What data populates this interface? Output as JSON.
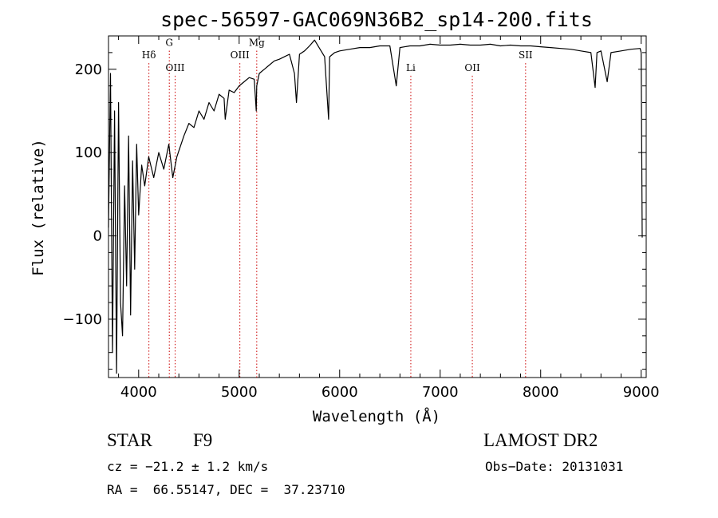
{
  "chart_data": {
    "type": "line",
    "title": "spec-56597-GAC069N36B2_sp14-200.fits",
    "xlabel": "Wavelength (Å)",
    "ylabel": "Flux (relative)",
    "xlim": [
      3700,
      9050
    ],
    "ylim": [
      -170,
      240
    ],
    "xticks": [
      4000,
      5000,
      6000,
      7000,
      8000,
      9000
    ],
    "yticks": [
      -100,
      0,
      100,
      200
    ],
    "grid": false,
    "series": [
      {
        "x": [
          3700,
          3720,
          3740,
          3760,
          3780,
          3800,
          3820,
          3840,
          3860,
          3880,
          3900,
          3920,
          3940,
          3960,
          3980,
          4000,
          4030,
          4060,
          4100,
          4150,
          4200,
          4250,
          4300,
          4340,
          4380,
          4450,
          4500,
          4550,
          4600,
          4650,
          4700,
          4750,
          4800,
          4850,
          4861,
          4900,
          4950,
          5000,
          5050,
          5100,
          5150,
          5170,
          5175,
          5200,
          5250,
          5300,
          5350,
          5400,
          5450,
          5500,
          5550,
          5570,
          5600,
          5650,
          5700,
          5750,
          5800,
          5850,
          5890,
          5900,
          5950,
          6000,
          6100,
          6200,
          6300,
          6400,
          6500,
          6563,
          6600,
          6700,
          6800,
          6900,
          7000,
          7100,
          7200,
          7300,
          7400,
          7500,
          7600,
          7700,
          7800,
          7900,
          8000,
          8100,
          8200,
          8300,
          8400,
          8500,
          8542,
          8560,
          8600,
          8662,
          8700,
          8800,
          8900,
          8990,
          9000,
          9010
        ],
        "y": [
          10,
          195,
          -140,
          150,
          -165,
          160,
          -80,
          -120,
          60,
          -60,
          120,
          -95,
          90,
          -40,
          110,
          25,
          85,
          60,
          95,
          70,
          100,
          80,
          110,
          70,
          95,
          120,
          135,
          130,
          150,
          140,
          160,
          150,
          170,
          165,
          140,
          175,
          172,
          180,
          185,
          190,
          188,
          150,
          180,
          195,
          200,
          205,
          210,
          212,
          215,
          218,
          195,
          160,
          218,
          222,
          228,
          235,
          225,
          215,
          140,
          215,
          220,
          222,
          224,
          226,
          226,
          228,
          228,
          180,
          226,
          228,
          228,
          230,
          229,
          229,
          230,
          229,
          229,
          230,
          228,
          229,
          228,
          228,
          227,
          226,
          225,
          224,
          222,
          220,
          178,
          220,
          222,
          185,
          220,
          222,
          224,
          225,
          220,
          -2
        ]
      }
    ],
    "line_markers": [
      {
        "label": "Hδ",
        "x": 4102,
        "label_y": 213
      },
      {
        "label": "G",
        "x": 4305,
        "label_y": 228
      },
      {
        "label": "OIII",
        "x": 4363,
        "label_y": 198
      },
      {
        "label": "OIII",
        "x": 5007,
        "label_y": 213
      },
      {
        "label": "Mg",
        "x": 5175,
        "label_y": 228
      },
      {
        "label": "Li",
        "x": 6708,
        "label_y": 198
      },
      {
        "label": "OII",
        "x": 7320,
        "label_y": 198
      },
      {
        "label": "SII",
        "x": 7850,
        "label_y": 213
      }
    ],
    "colors": {
      "spectrum": "#000000",
      "markers": "#cc0000"
    }
  },
  "info": {
    "object_class": "STAR",
    "subclass": "F9",
    "survey": "LAMOST DR2",
    "cz": "cz = −21.2 ± 1.2 km/s",
    "obs_date": "Obs−Date: 20131031",
    "coords": "RA =  66.55147, DEC =  37.23710"
  }
}
